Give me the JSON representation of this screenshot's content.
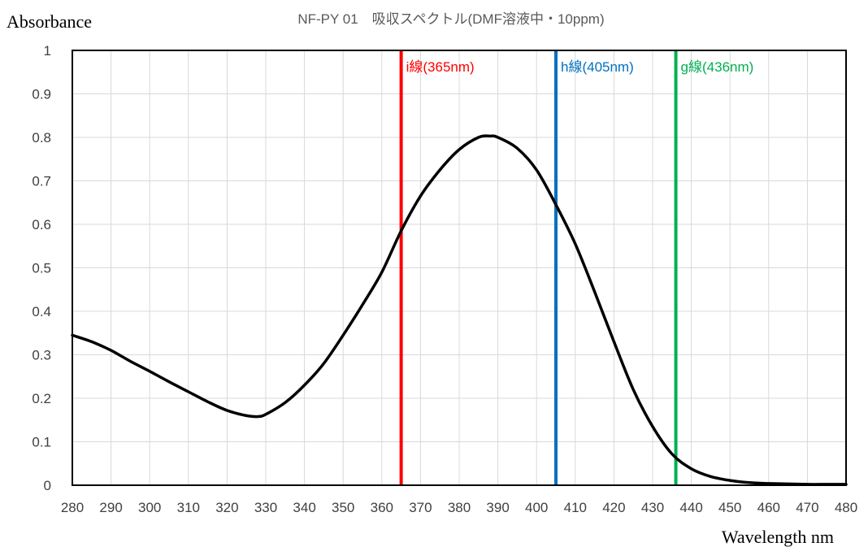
{
  "chart_data": {
    "type": "line",
    "title": "NF-PY 01　吸収スペクトル(DMF溶液中・10ppm)",
    "xlabel": "Wavelength nm",
    "ylabel": "Absorbance",
    "xlim": [
      280,
      480
    ],
    "ylim": [
      0,
      1
    ],
    "x_ticks": [
      "280",
      "290",
      "300",
      "310",
      "320",
      "330",
      "340",
      "350",
      "360",
      "370",
      "380",
      "390",
      "400",
      "410",
      "420",
      "430",
      "440",
      "450",
      "460",
      "470",
      "480"
    ],
    "y_ticks": [
      "0",
      "0.1",
      "0.2",
      "0.3",
      "0.4",
      "0.5",
      "0.6",
      "0.7",
      "0.8",
      "0.9",
      "1"
    ],
    "grid": true,
    "line_color": "#000000",
    "series": [
      {
        "x": [
          280,
          285,
          290,
          295,
          300,
          305,
          310,
          315,
          320,
          325,
          328,
          330,
          335,
          340,
          345,
          350,
          355,
          360,
          365,
          370,
          375,
          380,
          385,
          388,
          390,
          395,
          400,
          405,
          410,
          415,
          420,
          425,
          430,
          435,
          440,
          445,
          450,
          455,
          460,
          465,
          470,
          475,
          480
        ],
        "y": [
          0.345,
          0.33,
          0.31,
          0.285,
          0.262,
          0.238,
          0.215,
          0.192,
          0.172,
          0.16,
          0.158,
          0.163,
          0.19,
          0.23,
          0.28,
          0.345,
          0.415,
          0.49,
          0.585,
          0.665,
          0.725,
          0.772,
          0.8,
          0.803,
          0.8,
          0.775,
          0.725,
          0.645,
          0.555,
          0.445,
          0.33,
          0.22,
          0.135,
          0.072,
          0.038,
          0.02,
          0.011,
          0.006,
          0.004,
          0.003,
          0.002,
          0.002,
          0.002
        ]
      }
    ],
    "annotations": [
      {
        "label": "i線(365nm)",
        "x": 365,
        "color": "#ff0000"
      },
      {
        "label": "h線(405nm)",
        "x": 405,
        "color": "#0070c0"
      },
      {
        "label": "g線(436nm)",
        "x": 436,
        "color": "#00b050"
      }
    ]
  }
}
